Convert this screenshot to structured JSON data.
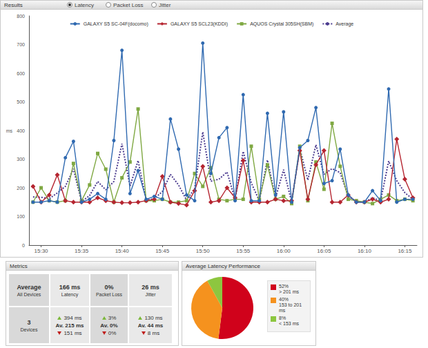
{
  "results_panel": {
    "title": "Results",
    "options": [
      "Latency",
      "Packet Loss",
      "Jitter"
    ],
    "selected": "Latency"
  },
  "chart_data": [
    {
      "type": "line",
      "y_label": "ms",
      "categories": [
        null,
        "15:30",
        null,
        null,
        null,
        null,
        "15:35",
        null,
        null,
        null,
        null,
        "15:40",
        null,
        null,
        null,
        null,
        "15:45",
        null,
        null,
        null,
        null,
        "15:50",
        null,
        null,
        null,
        null,
        "15:55",
        null,
        null,
        null,
        null,
        "16:00",
        null,
        null,
        null,
        null,
        "16:05",
        null,
        null,
        null,
        null,
        "16:10",
        null,
        null,
        null,
        null,
        "16:15",
        null
      ],
      "series": [
        {
          "name": "GALAXY S5 SC-04F(docomo)",
          "color": "#2f69b0",
          "marker": "circle",
          "line_style": "solid",
          "values": [
            150,
            150,
            155,
            150,
            305,
            362,
            150,
            160,
            180,
            160,
            365,
            680,
            180,
            260,
            160,
            170,
            160,
            440,
            335,
            175,
            155,
            705,
            250,
            375,
            410,
            155,
            525,
            155,
            155,
            460,
            175,
            465,
            150,
            340,
            365,
            480,
            215,
            225,
            335,
            175,
            150,
            150,
            190,
            155,
            545,
            150,
            160,
            160
          ]
        },
        {
          "name": "GALAXY S5 SCL23(KDDI)",
          "color": "#b52530",
          "marker": "diamond",
          "line_style": "solid",
          "values": [
            205,
            150,
            175,
            245,
            155,
            150,
            150,
            150,
            165,
            155,
            150,
            148,
            148,
            150,
            155,
            160,
            240,
            150,
            145,
            140,
            190,
            275,
            150,
            155,
            200,
            165,
            295,
            150,
            150,
            150,
            160,
            155,
            155,
            330,
            160,
            280,
            330,
            150,
            150,
            175,
            150,
            150,
            160,
            150,
            160,
            370,
            230,
            165
          ]
        },
        {
          "name": "AQUOS Crystal 305SH(SBM)",
          "color": "#7fa842",
          "marker": "square",
          "line_style": "solid",
          "values": [
            150,
            200,
            155,
            150,
            155,
            285,
            155,
            210,
            320,
            265,
            150,
            235,
            290,
            475,
            155,
            155,
            160,
            150,
            150,
            155,
            250,
            205,
            270,
            160,
            155,
            160,
            160,
            345,
            160,
            280,
            160,
            170,
            145,
            345,
            155,
            290,
            195,
            425,
            275,
            160,
            155,
            150,
            145,
            160,
            175,
            155,
            160,
            155
          ]
        },
        {
          "name": "Average",
          "color": "#4b3b8f",
          "line_style": "dotted",
          "values": [
            168,
            167,
            162,
            182,
            205,
            266,
            152,
            173,
            222,
            193,
            222,
            354,
            206,
            295,
            157,
            162,
            187,
            247,
            210,
            157,
            198,
            395,
            223,
            230,
            255,
            160,
            327,
            217,
            155,
            297,
            165,
            263,
            150,
            338,
            227,
            350,
            247,
            267,
            253,
            170,
            152,
            150,
            165,
            155,
            293,
            225,
            183,
            160
          ]
        }
      ],
      "ylim": [
        0,
        800
      ],
      "yticks": [
        0,
        100,
        200,
        300,
        400,
        500,
        600,
        700,
        800
      ],
      "grid": false,
      "legend": "top"
    },
    {
      "type": "pie",
      "title": "Average Latency Performance",
      "categories": [
        "> 201 ms",
        "153 to 201 ms",
        "< 153 ms"
      ],
      "values": [
        52,
        40,
        8
      ],
      "value_labels": [
        "52%",
        "40%",
        "8%"
      ],
      "colors": [
        "#d0021b",
        "#f5921e",
        "#8dc63f"
      ],
      "legend": "right",
      "data_labels": false
    }
  ],
  "metrics": {
    "title": "Metrics",
    "rows": [
      [
        {
          "lines": [
            "Average",
            "All Devices"
          ]
        },
        {
          "lines": [
            "166 ms",
            "Latency"
          ]
        },
        {
          "lines": [
            "0%",
            "Packet Loss"
          ]
        },
        {
          "lines": [
            "26 ms",
            "Jitter"
          ]
        }
      ],
      [
        {
          "lines": [
            "3",
            "Devices"
          ]
        },
        {
          "max": "394 ms",
          "avg": "Av. 215 ms",
          "min": "151 ms"
        },
        {
          "max": "3%",
          "avg": "Av. 0%",
          "min": "0%"
        },
        {
          "max": "130 ms",
          "avg": "Av. 44 ms",
          "min": "8 ms"
        }
      ]
    ]
  }
}
